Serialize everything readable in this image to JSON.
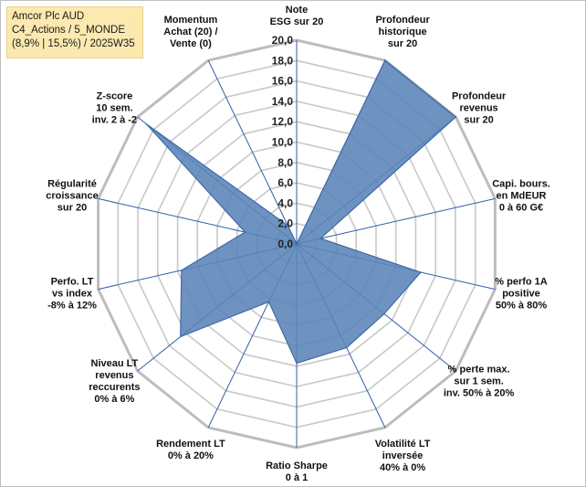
{
  "title": {
    "line1": "Amcor Plc AUD",
    "line2": "C4_Actions / 5_MONDE",
    "line3": "(8,9% | 15,5%) / 2025W35"
  },
  "colors": {
    "fill": "#5b84b8",
    "stroke": "#3e6aa8",
    "grid": "#c8c8c8",
    "spoke": "#2e5fa6",
    "title_bg": "#fbe9b0"
  },
  "chart_data": {
    "type": "radar",
    "r_max": 20,
    "r_ticks": [
      "0,0",
      "2,0",
      "4,0",
      "6,0",
      "8,0",
      "10,0",
      "12,0",
      "14,0",
      "16,0",
      "18,0",
      "20,0"
    ],
    "axes": [
      {
        "lines": [
          "Note",
          "ESG sur 20"
        ],
        "value": 0
      },
      {
        "lines": [
          "Profondeur",
          "historique",
          "sur 20"
        ],
        "value": 20
      },
      {
        "lines": [
          "Profondeur",
          "revenus",
          "sur 20"
        ],
        "value": 20
      },
      {
        "lines": [
          "Capi. bours.",
          "en MdEUR",
          "0 à 60 G€"
        ],
        "value": 2.4
      },
      {
        "lines": [
          "% perfo 1A",
          "positive",
          "50% à 80%"
        ],
        "value": 12.5
      },
      {
        "lines": [
          "% perte max.",
          "sur 1 sem.",
          "inv. 50% à 20%"
        ],
        "value": 11
      },
      {
        "lines": [
          "Volatilité LT",
          "inversée",
          "40% à 0%"
        ],
        "value": 11.3
      },
      {
        "lines": [
          "Ratio Sharpe",
          "0 à 1"
        ],
        "value": 11.7
      },
      {
        "lines": [
          "Rendement LT",
          "0% à 20%"
        ],
        "value": 6.3
      },
      {
        "lines": [
          "Niveau LT",
          "revenus",
          "reccurents",
          "0% à 6%"
        ],
        "value": 14.6
      },
      {
        "lines": [
          "Perfo. LT",
          "vs index",
          "-8% à 12%"
        ],
        "value": 11.6
      },
      {
        "lines": [
          "Régularité",
          "croissance",
          "sur 20"
        ],
        "value": 5.2
      },
      {
        "lines": [
          "Z-score",
          "10 sem.",
          "inv. 2 à -2"
        ],
        "value": 18.9
      },
      {
        "lines": [
          "Momentum",
          "Achat (20) /",
          "Vente (0)"
        ],
        "value": 2
      }
    ]
  }
}
